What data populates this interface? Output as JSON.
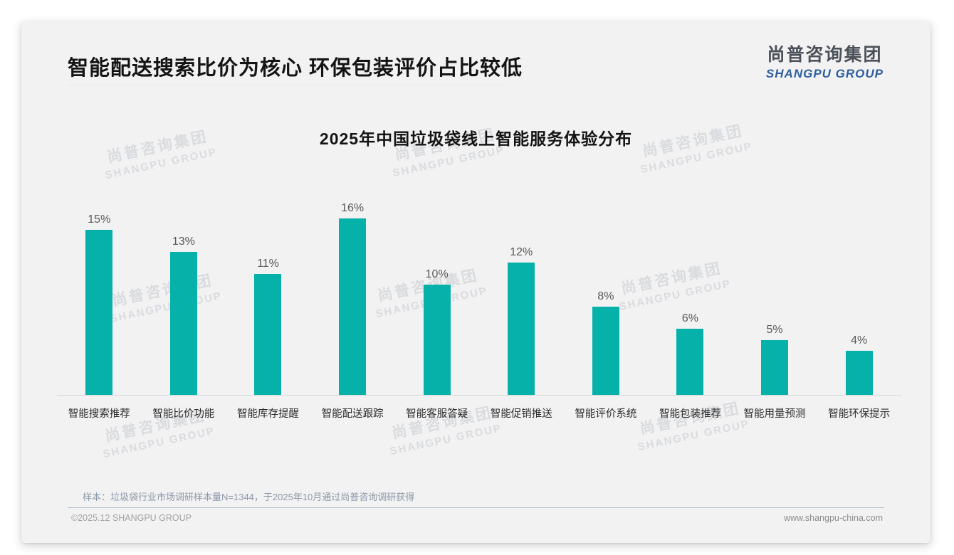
{
  "header": {
    "title": "智能配送搜索比价为核心 环保包装评价占比较低"
  },
  "logo": {
    "cn": "尚普咨询集团",
    "en": "SHANGPU GROUP"
  },
  "watermark": {
    "cn": "尚普咨询集团",
    "en": "SHANGPU GROUP"
  },
  "chart_data": {
    "type": "bar",
    "title": "2025年中国垃圾袋线上智能服务体验分布",
    "categories": [
      "智能搜索推荐",
      "智能比价功能",
      "智能库存提醒",
      "智能配送跟踪",
      "智能客服答疑",
      "智能促销推送",
      "智能评价系统",
      "智能包装推荐",
      "智能用量预测",
      "智能环保提示"
    ],
    "values": [
      15,
      13,
      11,
      16,
      10,
      12,
      8,
      6,
      5,
      4
    ],
    "data_labels": [
      "15%",
      "13%",
      "11%",
      "16%",
      "10%",
      "12%",
      "8%",
      "6%",
      "5%",
      "4%"
    ],
    "unit": "%",
    "ylim": [
      0,
      16
    ],
    "grid": false,
    "legend": false,
    "bar_color": "#06B1AA",
    "xlabel": "",
    "ylabel": ""
  },
  "footer": {
    "note": "样本：垃圾袋行业市场调研样本量N=1344，于2025年10月通过尚普咨询调研获得",
    "copyright": "©2025.12 SHANGPU GROUP",
    "website": "www.shangpu-china.com"
  }
}
